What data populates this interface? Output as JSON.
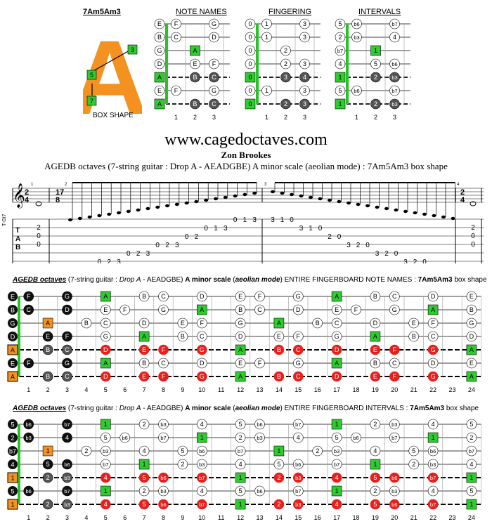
{
  "box": {
    "name": "7Am5Am3",
    "letter": "A",
    "label": "BOX SHAPE",
    "markers": [
      "3",
      "5",
      "7"
    ]
  },
  "mini": {
    "titles": [
      "NOTE NAMES",
      "FINGERING",
      "INTERVALS"
    ],
    "fret_numbers": [
      "1",
      "2",
      "3"
    ],
    "names": [
      [
        "E",
        "F",
        "",
        "G"
      ],
      [
        "B",
        "C",
        "",
        "D"
      ],
      [
        "G",
        "",
        "A",
        ""
      ],
      [
        "D",
        "",
        "E",
        "F"
      ],
      [
        "A",
        "",
        "B",
        "C"
      ],
      [
        "E",
        "F",
        "",
        "G"
      ],
      [
        "A",
        "",
        "B",
        "C"
      ]
    ],
    "fingering": [
      [
        "0",
        "1",
        "",
        "3"
      ],
      [
        "0",
        "1",
        "",
        "3"
      ],
      [
        "0",
        "",
        "2",
        ""
      ],
      [
        "0",
        "",
        "2",
        "3"
      ],
      [
        "0",
        "",
        "3",
        "4"
      ],
      [
        "0",
        "1",
        "",
        "3"
      ],
      [
        "0",
        "",
        "2",
        "3"
      ]
    ],
    "intervals": [
      [
        "5",
        "b6",
        "",
        "b7"
      ],
      [
        "2",
        "b3",
        "",
        "4"
      ],
      [
        "b7",
        "",
        "1",
        ""
      ],
      [
        "4",
        "",
        "5",
        "b6"
      ],
      [
        "1",
        "",
        "2",
        "b3"
      ],
      [
        "5",
        "b6",
        "",
        "b7"
      ],
      [
        "1",
        "",
        "2",
        "b3"
      ]
    ]
  },
  "site": "www.cagedoctaves.com",
  "author": "Zon Brookes",
  "description": "AGEDB octaves (7-string guitar : Drop A - AEADGBE) A minor scale (aeolian mode) : 7Am5Am3 box shape",
  "score": {
    "tuning_label": "T-Gt7",
    "tab_letters": [
      "T",
      "A",
      "B"
    ],
    "time_signatures": [
      "2/4",
      "17/8",
      "2/4"
    ],
    "measure_numbers": [
      "1",
      "2",
      "3",
      "4"
    ],
    "tab_m1": [
      "2",
      "0",
      "0"
    ],
    "tab_m4": [
      "2",
      "0",
      "0"
    ],
    "tab_run_up": [
      "0",
      "1",
      "3",
      "0",
      "2",
      "3",
      "0",
      "2",
      "3",
      "0",
      "2",
      "3",
      "0",
      "2",
      "0",
      "1",
      "3",
      "0",
      "1",
      "3"
    ],
    "tab_run_down": [
      "3",
      "1",
      "0",
      "3",
      "1",
      "0",
      "2",
      "0",
      "3",
      "2",
      "0",
      "3",
      "2",
      "0",
      "3",
      "2",
      "0",
      "3",
      "1",
      "0"
    ]
  },
  "section1": {
    "title_parts": [
      "AGEDB octaves",
      " (7-string guitar : ",
      "Drop A",
      " - AEADGBE) ",
      "A minor scale",
      " (",
      "aeolian mode",
      ") ENTIRE FINGERBOARD NOTE NAMES : ",
      "7Am5Am3",
      " box shape"
    ],
    "open": [
      "E",
      "B",
      "G",
      "D",
      "A",
      "E",
      "A"
    ]
  },
  "section2": {
    "title_parts": [
      "AGEDB octaves",
      " (7-string guitar : ",
      "Drop A",
      " - AEADGBE) ",
      "A minor scale",
      " (",
      "aeolian mode",
      ") ENTIRE FINGERBOARD INTERVALS : ",
      "7Am5Am3",
      " box shape"
    ],
    "open": [
      "5",
      "2",
      "b7",
      "4",
      "1",
      "5",
      "1"
    ]
  },
  "fret_numbers": [
    "1",
    "2",
    "3",
    "4",
    "5",
    "6",
    "7",
    "8",
    "9",
    "10",
    "11",
    "12",
    "13",
    "14",
    "15",
    "16",
    "17",
    "18",
    "19",
    "20",
    "21",
    "22",
    "23",
    "24"
  ],
  "colors": {
    "green": "#2ecc2e",
    "red": "#e8201c",
    "orange": "#f39220",
    "dark": "#555555",
    "black": "#111111",
    "nut": "#27c227"
  }
}
